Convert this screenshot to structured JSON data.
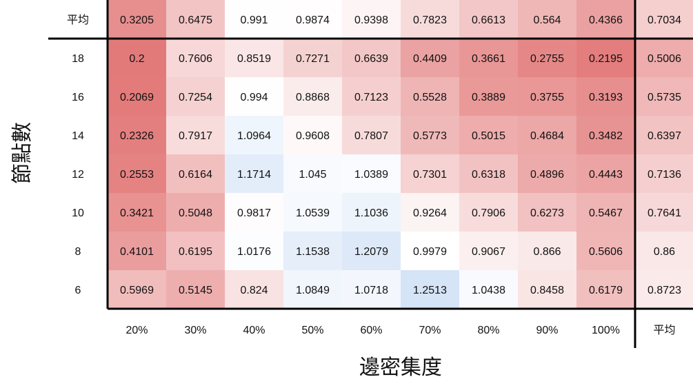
{
  "chart_data": {
    "type": "heatmap",
    "xlabel": "邊密集度",
    "ylabel": "節點數",
    "x_categories": [
      "20%",
      "30%",
      "40%",
      "50%",
      "60%",
      "70%",
      "80%",
      "90%",
      "100%"
    ],
    "y_categories": [
      "18",
      "16",
      "14",
      "12",
      "10",
      "8",
      "6"
    ],
    "average_label": "平均",
    "values": [
      [
        0.2,
        0.7606,
        0.8519,
        0.7271,
        0.6639,
        0.4409,
        0.3661,
        0.2755,
        0.2195
      ],
      [
        0.2069,
        0.7254,
        0.994,
        0.8868,
        0.7123,
        0.5528,
        0.3889,
        0.3755,
        0.3193
      ],
      [
        0.2326,
        0.7917,
        1.0964,
        0.9608,
        0.7807,
        0.5773,
        0.5015,
        0.4684,
        0.3482
      ],
      [
        0.2553,
        0.6164,
        1.1714,
        1.045,
        1.0389,
        0.7301,
        0.6318,
        0.4896,
        0.4443
      ],
      [
        0.3421,
        0.5048,
        0.9817,
        1.0539,
        1.1036,
        0.9264,
        0.7906,
        0.6273,
        0.5467
      ],
      [
        0.4101,
        0.6195,
        1.0176,
        1.1538,
        1.2079,
        0.9979,
        0.9067,
        0.866,
        0.5606
      ],
      [
        0.5969,
        0.5145,
        0.824,
        1.0849,
        1.0718,
        1.2513,
        1.0438,
        0.8458,
        0.6179
      ]
    ],
    "column_averages": [
      0.3205,
      0.6475,
      0.991,
      0.9874,
      0.9398,
      0.7823,
      0.6613,
      0.564,
      0.4366
    ],
    "row_averages": [
      0.5006,
      0.5735,
      0.6397,
      0.7136,
      0.7641,
      0.86,
      0.8723
    ],
    "overall_average": 0.7034,
    "color_scale": {
      "low": "#e37a7a",
      "mid": "#ffffff",
      "high": "#d6e4f7",
      "center_value": 1.0
    }
  }
}
